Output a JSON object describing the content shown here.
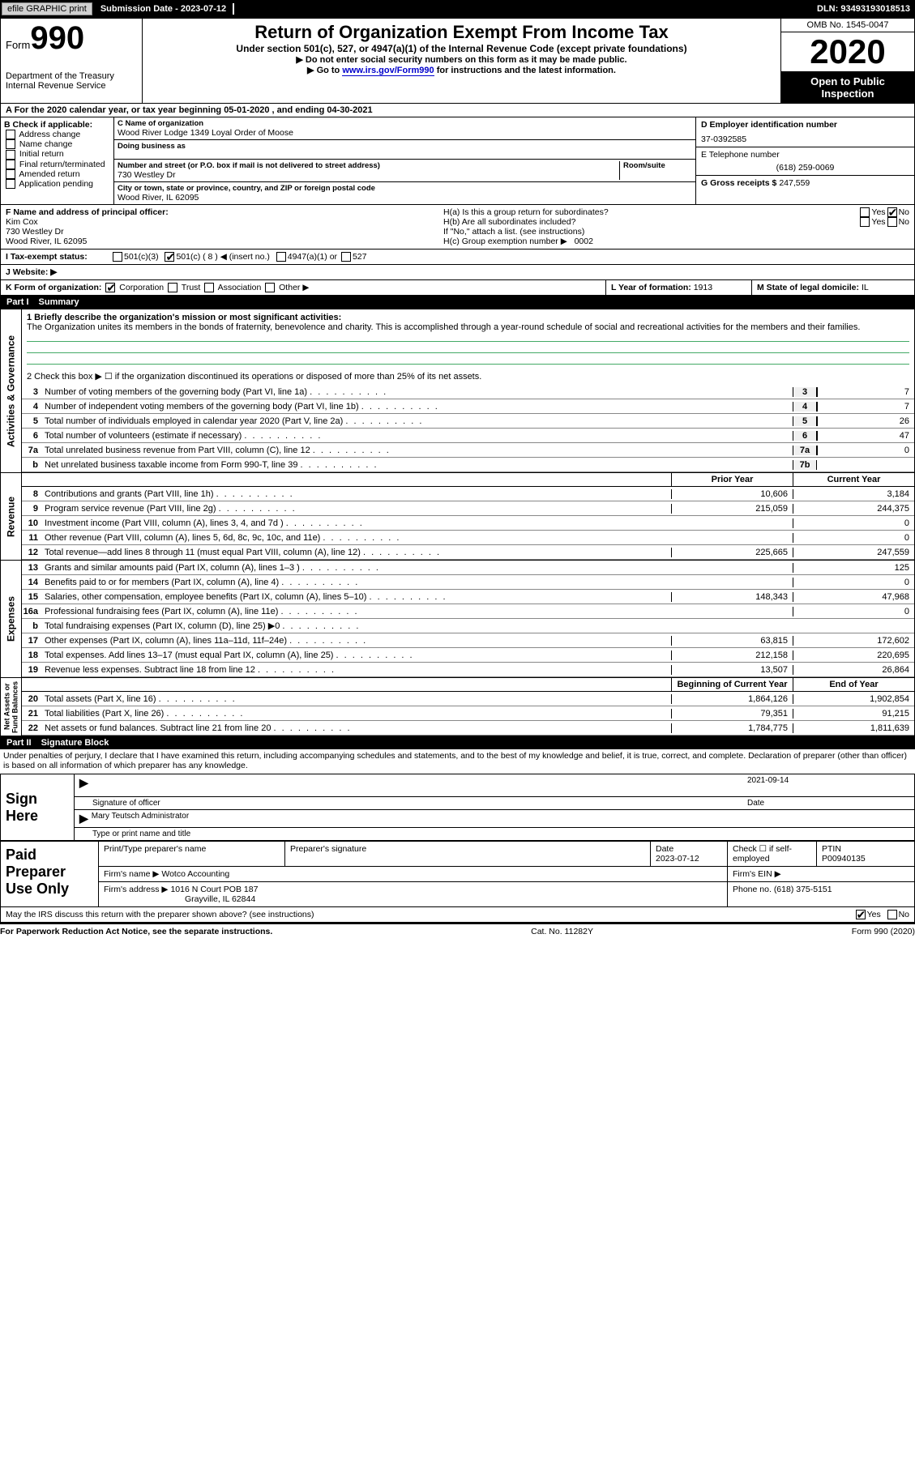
{
  "topbar": {
    "efile": "efile GRAPHIC print",
    "submission": "Submission Date - 2023-07-12",
    "dln": "DLN: 93493193018513"
  },
  "header": {
    "form_word": "Form",
    "form_num": "990",
    "dept": "Department of the Treasury\nInternal Revenue Service",
    "title": "Return of Organization Exempt From Income Tax",
    "sub1": "Under section 501(c), 527, or 4947(a)(1) of the Internal Revenue Code (except private foundations)",
    "sub2": "▶ Do not enter social security numbers on this form as it may be made public.",
    "sub3_pre": "▶ Go to ",
    "sub3_link": "www.irs.gov/Form990",
    "sub3_post": " for instructions and the latest information.",
    "omb": "OMB No. 1545-0047",
    "year": "2020",
    "inspect": "Open to Public Inspection"
  },
  "period": "A For the 2020 calendar year, or tax year beginning 05-01-2020   , and ending 04-30-2021",
  "section_b": {
    "hdr": "B Check if applicable:",
    "items": [
      "Address change",
      "Name change",
      "Initial return",
      "Final return/terminated",
      "Amended return",
      "Application pending"
    ]
  },
  "section_c": {
    "name_lbl": "C Name of organization",
    "name": "Wood River Lodge 1349 Loyal Order of Moose",
    "dba_lbl": "Doing business as",
    "dba": "",
    "street_lbl": "Number and street (or P.O. box if mail is not delivered to street address)",
    "room_lbl": "Room/suite",
    "street": "730 Westley Dr",
    "city_lbl": "City or town, state or province, country, and ZIP or foreign postal code",
    "city": "Wood River, IL  62095"
  },
  "section_de": {
    "ein_lbl": "D Employer identification number",
    "ein": "37-0392585",
    "phone_lbl": "E Telephone number",
    "phone": "(618) 259-0069",
    "gross_lbl": "G Gross receipts $",
    "gross": "247,559"
  },
  "section_f": {
    "lbl": "F Name and address of principal officer:",
    "name": "Kim Cox",
    "addr1": "730 Westley Dr",
    "addr2": "Wood River, IL  62095"
  },
  "section_h": {
    "ha": "H(a)  Is this a group return for subordinates?",
    "hb": "H(b)  Are all subordinates included?",
    "hb_note": "If \"No,\" attach a list. (see instructions)",
    "hc": "H(c)  Group exemption number ▶",
    "hc_val": "0002",
    "yes": "Yes",
    "no": "No"
  },
  "row_i": {
    "lbl": "I    Tax-exempt status:",
    "o1": "501(c)(3)",
    "o2": "501(c) ( 8 ) ◀ (insert no.)",
    "o3": "4947(a)(1) or",
    "o4": "527"
  },
  "row_j": {
    "lbl": "J    Website: ▶",
    "val": ""
  },
  "row_k": {
    "lbl": "K Form of organization:",
    "o1": "Corporation",
    "o2": "Trust",
    "o3": "Association",
    "o4": "Other ▶"
  },
  "row_lm": {
    "l_lbl": "L Year of formation:",
    "l_val": "1913",
    "m_lbl": "M State of legal domicile:",
    "m_val": "IL"
  },
  "part1": {
    "num": "Part I",
    "title": "Summary"
  },
  "summary": {
    "q1_lbl": "1  Briefly describe the organization's mission or most significant activities:",
    "q1_text": "The Organization unites its members in the bonds of fraternity, benevolence and charity. This is accomplished through a year-round schedule of social and recreational activities for the members and their families.",
    "q2": "2   Check this box ▶ ☐  if the organization discontinued its operations or disposed of more than 25% of its net assets."
  },
  "gov_lines": [
    {
      "n": "3",
      "t": "Number of voting members of the governing body (Part VI, line 1a)",
      "box": "3",
      "v": "7"
    },
    {
      "n": "4",
      "t": "Number of independent voting members of the governing body (Part VI, line 1b)",
      "box": "4",
      "v": "7"
    },
    {
      "n": "5",
      "t": "Total number of individuals employed in calendar year 2020 (Part V, line 2a)",
      "box": "5",
      "v": "26"
    },
    {
      "n": "6",
      "t": "Total number of volunteers (estimate if necessary)",
      "box": "6",
      "v": "47"
    },
    {
      "n": "7a",
      "t": "Total unrelated business revenue from Part VIII, column (C), line 12",
      "box": "7a",
      "v": "0"
    },
    {
      "n": "b",
      "t": "Net unrelated business taxable income from Form 990-T, line 39",
      "box": "7b",
      "v": ""
    }
  ],
  "col_hdrs": {
    "prior": "Prior Year",
    "curr": "Current Year"
  },
  "rev_lines": [
    {
      "n": "8",
      "t": "Contributions and grants (Part VIII, line 1h)",
      "p": "10,606",
      "c": "3,184"
    },
    {
      "n": "9",
      "t": "Program service revenue (Part VIII, line 2g)",
      "p": "215,059",
      "c": "244,375"
    },
    {
      "n": "10",
      "t": "Investment income (Part VIII, column (A), lines 3, 4, and 7d )",
      "p": "",
      "c": "0"
    },
    {
      "n": "11",
      "t": "Other revenue (Part VIII, column (A), lines 5, 6d, 8c, 9c, 10c, and 11e)",
      "p": "",
      "c": "0"
    },
    {
      "n": "12",
      "t": "Total revenue—add lines 8 through 11 (must equal Part VIII, column (A), line 12)",
      "p": "225,665",
      "c": "247,559"
    }
  ],
  "exp_lines": [
    {
      "n": "13",
      "t": "Grants and similar amounts paid (Part IX, column (A), lines 1–3 )",
      "p": "",
      "c": "125"
    },
    {
      "n": "14",
      "t": "Benefits paid to or for members (Part IX, column (A), line 4)",
      "p": "",
      "c": "0"
    },
    {
      "n": "15",
      "t": "Salaries, other compensation, employee benefits (Part IX, column (A), lines 5–10)",
      "p": "148,343",
      "c": "47,968"
    },
    {
      "n": "16a",
      "t": "Professional fundraising fees (Part IX, column (A), line 11e)",
      "p": "",
      "c": "0"
    },
    {
      "n": "b",
      "t": "Total fundraising expenses (Part IX, column (D), line 25) ▶0",
      "p": "shade",
      "c": "shade"
    },
    {
      "n": "17",
      "t": "Other expenses (Part IX, column (A), lines 11a–11d, 11f–24e)",
      "p": "63,815",
      "c": "172,602"
    },
    {
      "n": "18",
      "t": "Total expenses. Add lines 13–17 (must equal Part IX, column (A), line 25)",
      "p": "212,158",
      "c": "220,695"
    },
    {
      "n": "19",
      "t": "Revenue less expenses. Subtract line 18 from line 12",
      "p": "13,507",
      "c": "26,864"
    }
  ],
  "na_hdrs": {
    "prior": "Beginning of Current Year",
    "curr": "End of Year"
  },
  "na_lines": [
    {
      "n": "20",
      "t": "Total assets (Part X, line 16)",
      "p": "1,864,126",
      "c": "1,902,854"
    },
    {
      "n": "21",
      "t": "Total liabilities (Part X, line 26)",
      "p": "79,351",
      "c": "91,215"
    },
    {
      "n": "22",
      "t": "Net assets or fund balances. Subtract line 21 from line 20",
      "p": "1,784,775",
      "c": "1,811,639"
    }
  ],
  "vtabs": {
    "gov": "Activities & Governance",
    "rev": "Revenue",
    "exp": "Expenses",
    "na": "Net Assets or\nFund Balances"
  },
  "part2": {
    "num": "Part II",
    "title": "Signature Block"
  },
  "penalties": "Under penalties of perjury, I declare that I have examined this return, including accompanying schedules and statements, and to the best of my knowledge and belief, it is true, correct, and complete. Declaration of preparer (other than officer) is based on all information of which preparer has any knowledge.",
  "sign": {
    "here": "Sign Here",
    "sig_officer": "Signature of officer",
    "date": "Date",
    "date_val": "2021-09-14",
    "name": "Mary Teutsch  Administrator",
    "name_lbl": "Type or print name and title"
  },
  "preparer": {
    "lbl": "Paid Preparer Use Only",
    "r1": {
      "c1": "Print/Type preparer's name",
      "c2": "Preparer's signature",
      "c3_lbl": "Date",
      "c3": "2023-07-12",
      "c4": "Check ☐ if self-employed",
      "c5_lbl": "PTIN",
      "c5": "P00940135"
    },
    "r2": {
      "c1_lbl": "Firm's name   ▶",
      "c1": "Wotco Accounting",
      "c2_lbl": "Firm's EIN ▶",
      "c2": ""
    },
    "r3": {
      "c1_lbl": "Firm's address ▶",
      "c1": "1016 N Court POB 187",
      "c1b": "Grayville, IL  62844",
      "c2_lbl": "Phone no.",
      "c2": "(618) 375-5151"
    }
  },
  "discuss": {
    "txt": "May the IRS discuss this return with the preparer shown above? (see instructions)",
    "yes": "Yes",
    "no": "No"
  },
  "footer": {
    "l": "For Paperwork Reduction Act Notice, see the separate instructions.",
    "c": "Cat. No. 11282Y",
    "r": "Form 990 (2020)"
  }
}
